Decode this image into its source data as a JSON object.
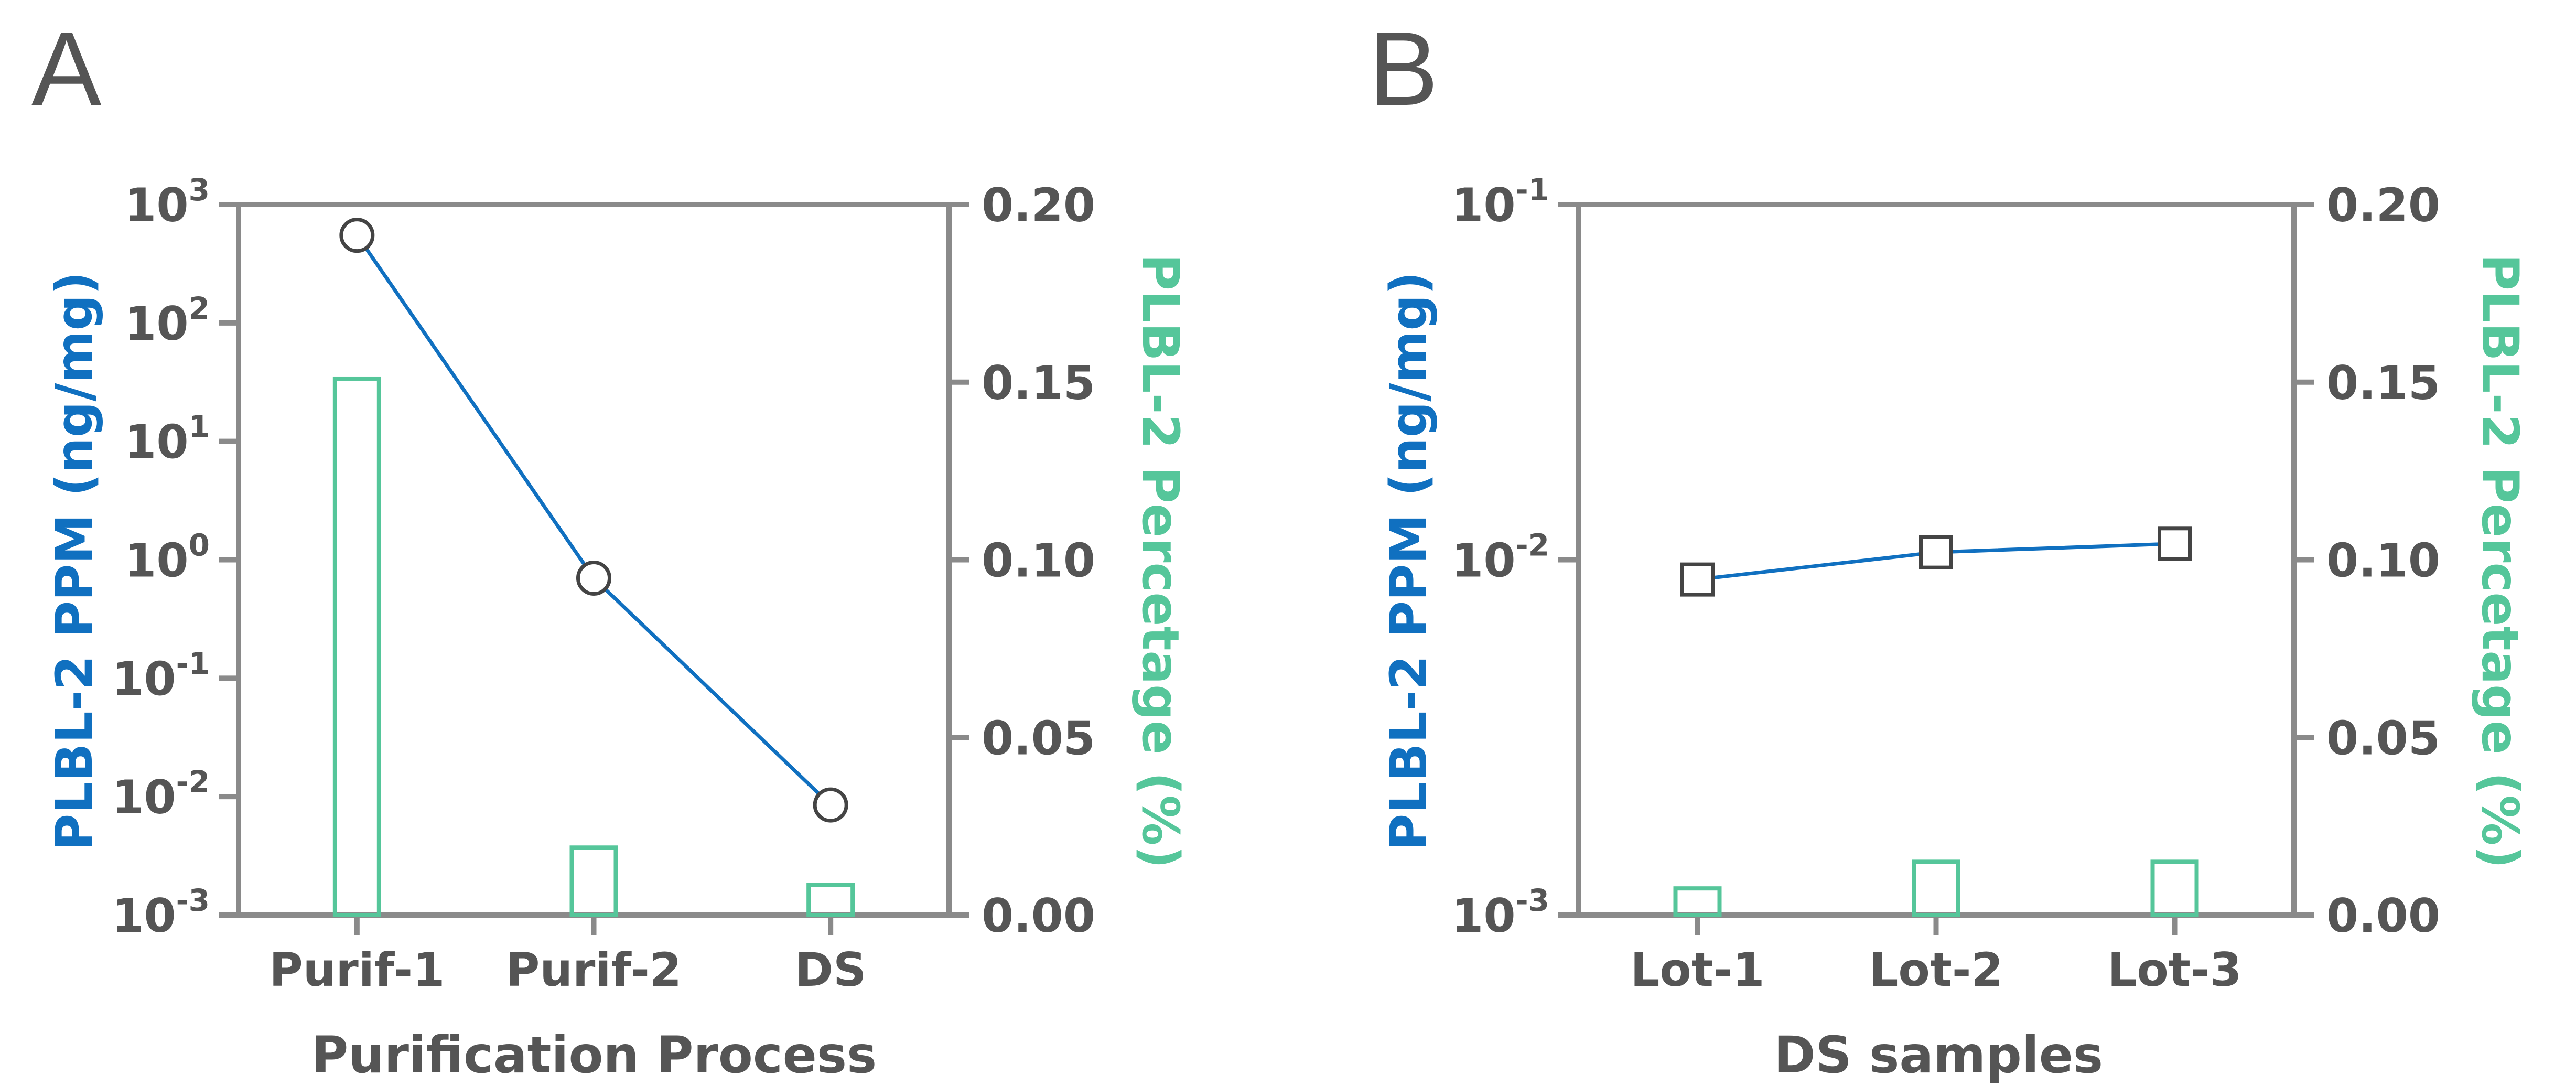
{
  "colors": {
    "axis": "#8a8a8a",
    "text": "#555555",
    "line": "#1070c0",
    "bar": "#55c69a",
    "marker": "#444444"
  },
  "chart_data": [
    {
      "panel": "A",
      "type": "bar+line",
      "categories": [
        "Purif-1",
        "Purif-2",
        "DS"
      ],
      "xlabel": "Purification Process",
      "ylabel_left": "PLBL-2 PPM (ng/mg)",
      "ylabel_right": "PLBL-2 Percetage (%)",
      "left_axis": {
        "scale": "log",
        "range": [
          0.001,
          1000
        ],
        "ticks": [
          {
            "base": "10",
            "exp": "3"
          },
          {
            "base": "10",
            "exp": "2"
          },
          {
            "base": "10",
            "exp": "1"
          },
          {
            "base": "10",
            "exp": "0"
          },
          {
            "base": "10",
            "exp": "-1"
          },
          {
            "base": "10",
            "exp": "-2"
          },
          {
            "base": "10",
            "exp": "-3"
          }
        ]
      },
      "right_axis": {
        "scale": "linear",
        "range": [
          0,
          0.2
        ],
        "ticks": [
          "0.20",
          "0.15",
          "0.10",
          "0.05",
          "0.00"
        ]
      },
      "line_series": {
        "marker": "circle",
        "values": [
          550,
          0.7,
          0.0085
        ],
        "error": [
          0,
          0,
          0.0015
        ]
      },
      "bar_series": {
        "values": [
          0.151,
          0.019,
          0.0085
        ]
      }
    },
    {
      "panel": "B",
      "type": "bar+line",
      "categories": [
        "Lot-1",
        "Lot-2",
        "Lot-3"
      ],
      "xlabel": "DS samples",
      "ylabel_left": "PLBL-2 PPM (ng/mg)",
      "ylabel_right": "PLBL-2 Percetage (%)",
      "left_axis": {
        "scale": "log",
        "range": [
          0.001,
          0.1
        ],
        "ticks": [
          {
            "base": "10",
            "exp": "-1"
          },
          {
            "base": "10",
            "exp": "-2"
          },
          {
            "base": "10",
            "exp": "-3"
          }
        ]
      },
      "right_axis": {
        "scale": "linear",
        "range": [
          0,
          0.2
        ],
        "ticks": [
          "0.20",
          "0.15",
          "0.10",
          "0.05",
          "0.00"
        ]
      },
      "line_series": {
        "marker": "square",
        "values": [
          0.0088,
          0.0105,
          0.0111
        ],
        "error": [
          0,
          0,
          0.0006
        ]
      },
      "bar_series": {
        "values": [
          0.0075,
          0.015,
          0.015
        ]
      }
    }
  ]
}
